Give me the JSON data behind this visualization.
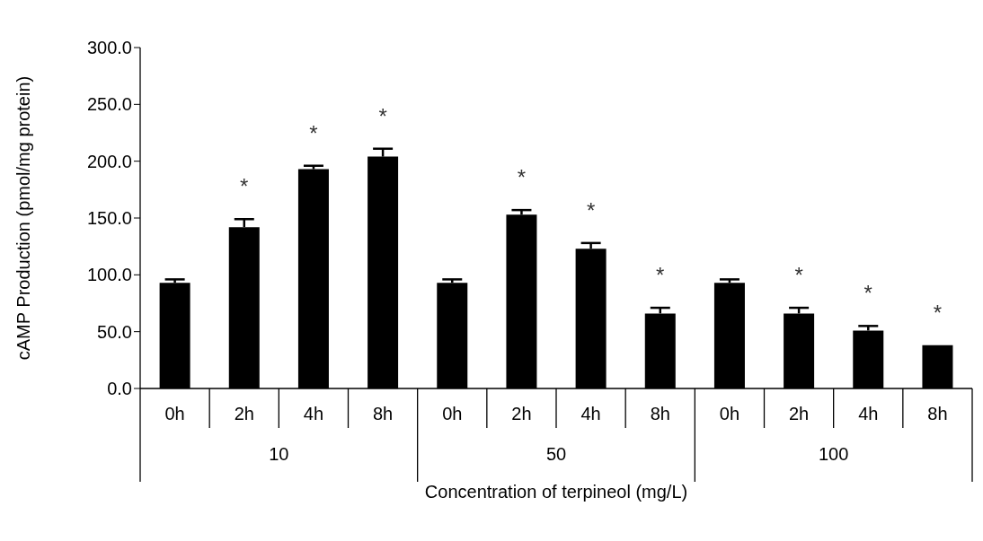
{
  "chart_data": {
    "type": "bar",
    "xlabel": "Concentration of terpineol (mg/L)",
    "ylabel": "cAMP Production (pmol/mg protein)",
    "categories": [
      "0h",
      "2h",
      "4h",
      "8h",
      "0h",
      "2h",
      "4h",
      "8h",
      "0h",
      "2h",
      "4h",
      "8h"
    ],
    "values": [
      93,
      142,
      193,
      204,
      93,
      153,
      123,
      66,
      93,
      66,
      51,
      38
    ],
    "errors": [
      [
        93,
        96
      ],
      [
        142,
        149
      ],
      [
        193,
        196
      ],
      [
        204,
        211
      ],
      [
        93,
        96
      ],
      [
        153,
        157
      ],
      [
        123,
        128
      ],
      [
        66,
        71
      ],
      [
        93,
        96
      ],
      [
        66,
        71
      ],
      [
        51,
        55
      ],
      null
    ],
    "value_labels": [
      null,
      "*",
      "*",
      "*",
      null,
      "*",
      "*",
      "*",
      null,
      "*",
      "*",
      "*"
    ],
    "annotations": [
      "10",
      "50",
      "100"
    ],
    "color": "#000000",
    "ylim": [
      0,
      300
    ],
    "yticks": [
      {
        "value": 0,
        "label": "0.0"
      },
      {
        "value": 50,
        "label": "50.0"
      },
      {
        "value": 100,
        "label": "100.0"
      },
      {
        "value": 150,
        "label": "150.0"
      },
      {
        "value": 200,
        "label": "200.0"
      },
      {
        "value": 250,
        "label": "250.0"
      },
      {
        "value": 300,
        "label": "300.0"
      }
    ],
    "grid": false,
    "legend": false
  }
}
